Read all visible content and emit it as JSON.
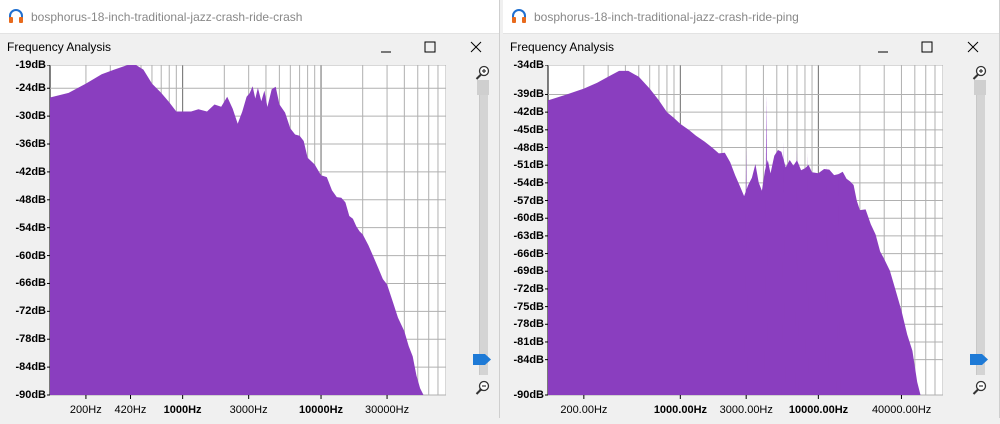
{
  "windows": [
    {
      "id": "crash",
      "title": "bosphorus-18-inch-traditional-jazz-crash-ride-crash",
      "dialog_title": "Frequency Analysis",
      "y_labels": [
        "-19dB",
        "-24dB",
        "-30dB",
        "-36dB",
        "-42dB",
        "-48dB",
        "-54dB",
        "-60dB",
        "-66dB",
        "-72dB",
        "-78dB",
        "-84dB",
        "-90dB"
      ],
      "y_values": [
        -19,
        -24,
        -30,
        -36,
        -42,
        -48,
        -54,
        -60,
        -66,
        -72,
        -78,
        -84,
        -90
      ],
      "ylim": [
        -90,
        -19
      ],
      "x_labels": [
        {
          "text": "200Hz",
          "hz": 200,
          "bold": false
        },
        {
          "text": "420Hz",
          "hz": 420,
          "bold": false
        },
        {
          "text": "1000Hz",
          "hz": 1000,
          "bold": true
        },
        {
          "text": "3000Hz",
          "hz": 3000,
          "bold": false
        },
        {
          "text": "10000Hz",
          "hz": 10000,
          "bold": true
        },
        {
          "text": "30000Hz",
          "hz": 30000,
          "bold": false
        }
      ],
      "xlim_hz": [
        110,
        80000
      ],
      "color": "#8a3ebf",
      "spectrum": {
        "hz": [
          110,
          150,
          200,
          260,
          320,
          400,
          460,
          520,
          600,
          700,
          800,
          900,
          1000,
          1150,
          1300,
          1500,
          1700,
          1900,
          2100,
          2300,
          2500,
          2700,
          2900,
          3050,
          3200,
          3350,
          3500,
          3700,
          3900,
          4100,
          4400,
          4700,
          5000,
          5500,
          6000,
          6500,
          7000,
          7500,
          8000,
          9000,
          10000,
          11000,
          12000,
          13000,
          14000,
          15000,
          16000,
          17000,
          18000,
          19000,
          20000,
          22000,
          24000,
          26000,
          28000,
          30000,
          33000,
          36000,
          40000,
          43000,
          46000,
          49000,
          52000,
          55000
        ],
        "db": [
          -26,
          -25,
          -23,
          -21,
          -20,
          -19,
          -19,
          -20,
          -23,
          -25,
          -27,
          -29,
          -29,
          -29,
          -28.5,
          -29,
          -27.5,
          -28,
          -27,
          -29,
          -33,
          -30,
          -27,
          -24,
          -22,
          -25,
          -23,
          -25,
          -23,
          -27,
          -26,
          -25,
          -28,
          -30,
          -33,
          -35,
          -36,
          -37,
          -38,
          -40,
          -42,
          -43,
          -45,
          -46,
          -47,
          -50,
          -52,
          -53,
          -54,
          -55,
          -56,
          -58,
          -60,
          -62,
          -64,
          -66,
          -69,
          -72,
          -75,
          -78,
          -82,
          -86,
          -90,
          -92
        ]
      },
      "zoom_in_icon": "zoom-in-icon",
      "zoom_out_icon": "zoom-out-icon"
    },
    {
      "id": "ping",
      "title": "bosphorus-18-inch-traditional-jazz-crash-ride-ping",
      "dialog_title": "Frequency Analysis",
      "y_labels": [
        "-34dB",
        "-39dB",
        "-42dB",
        "-45dB",
        "-48dB",
        "-51dB",
        "-54dB",
        "-57dB",
        "-60dB",
        "-63dB",
        "-66dB",
        "-69dB",
        "-72dB",
        "-75dB",
        "-78dB",
        "-81dB",
        "-84dB",
        "-90dB"
      ],
      "y_values": [
        -34,
        -39,
        -42,
        -45,
        -48,
        -51,
        -54,
        -57,
        -60,
        -63,
        -66,
        -69,
        -72,
        -75,
        -78,
        -81,
        -84,
        -90
      ],
      "ylim": [
        -90,
        -34
      ],
      "x_labels": [
        {
          "text": "200.00Hz",
          "hz": 200,
          "bold": false
        },
        {
          "text": "1000.00Hz",
          "hz": 1000,
          "bold": true
        },
        {
          "text": "3000.00Hz",
          "hz": 3000,
          "bold": false
        },
        {
          "text": "10000.00Hz",
          "hz": 10000,
          "bold": true
        },
        {
          "text": "40000.00Hz",
          "hz": 40000,
          "bold": false
        }
      ],
      "xlim_hz": [
        110,
        80000
      ],
      "color": "#8a3ebf",
      "spectrum": {
        "hz": [
          110,
          150,
          200,
          250,
          300,
          360,
          420,
          500,
          600,
          700,
          800,
          900,
          1000,
          1150,
          1300,
          1500,
          1700,
          1900,
          2100,
          2300,
          2500,
          2700,
          2900,
          3100,
          3300,
          3500,
          3700,
          3900,
          4100,
          4300,
          4500,
          4800,
          5100,
          5400,
          5800,
          6200,
          6600,
          7000,
          7500,
          8000,
          8500,
          9000,
          10000,
          11000,
          12000,
          13000,
          14000,
          15000,
          16000,
          17000,
          18000,
          19000,
          20000,
          22000,
          24000,
          26000,
          28000,
          30000,
          33000,
          36000,
          40000,
          44000,
          48000,
          52000,
          55000
        ],
        "db": [
          -40,
          -39,
          -38,
          -37,
          -36,
          -35,
          -35,
          -36,
          -38,
          -40,
          -42,
          -43,
          -44,
          -45,
          -46,
          -47,
          -48,
          -49,
          -50,
          -52,
          -53,
          -54,
          -55,
          -53,
          -52,
          -50,
          -53,
          -54,
          -52,
          -51,
          -53,
          -50,
          -49,
          -50,
          -52,
          -51,
          -50,
          -49,
          -51,
          -50,
          -50,
          -51,
          -52,
          -53,
          -52,
          -53,
          -54,
          -53,
          -55,
          -54,
          -55,
          -56,
          -57,
          -58,
          -60,
          -62,
          -64,
          -66,
          -69,
          -72,
          -76,
          -80,
          -84,
          -88,
          -92
        ]
      },
      "peaks": [
        {
          "hz": 3000,
          "db": -48
        },
        {
          "hz": 4200,
          "db": -39
        },
        {
          "hz": 5600,
          "db": -47
        },
        {
          "hz": 7000,
          "db": -48
        },
        {
          "hz": 8300,
          "db": -49
        },
        {
          "hz": 11500,
          "db": -51
        },
        {
          "hz": 14000,
          "db": -52
        }
      ],
      "zoom_in_icon": "zoom-in-icon",
      "zoom_out_icon": "zoom-out-icon"
    }
  ]
}
